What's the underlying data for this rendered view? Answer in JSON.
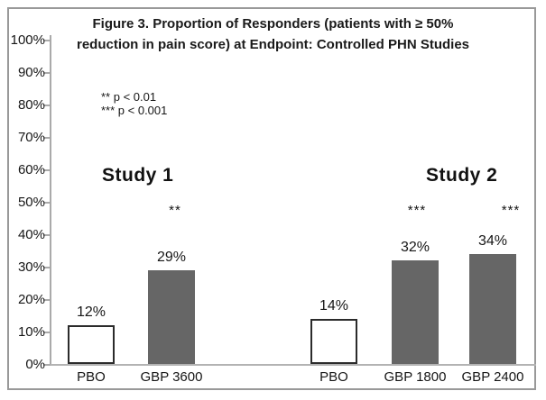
{
  "figure": {
    "title_lines": [
      "Figure 3. Proportion of Responders (patients with ≥ 50%",
      "reduction in pain score) at Endpoint: Controlled PHN Studies"
    ]
  },
  "chart_data": {
    "type": "bar",
    "title": "Figure 3. Proportion of Responders (patients with ≥ 50% reduction in pain score) at Endpoint: Controlled PHN Studies",
    "xlabel": "",
    "ylabel": "",
    "ylim": [
      0,
      100
    ],
    "grid": false,
    "ytick_labels": [
      "100%",
      "90%",
      "80%",
      "70%",
      "60%",
      "50%",
      "40%",
      "30%",
      "20%",
      "10%",
      "0%"
    ],
    "legend_notes": [
      "** p < 0.01",
      "*** p < 0.001"
    ],
    "categories": [
      "PBO",
      "GBP 3600",
      "PBO",
      "GBP 1800",
      "GBP 2400"
    ],
    "values": [
      12,
      29,
      14,
      32,
      34
    ],
    "groups": [
      {
        "label": "Study 1",
        "bars": [
          {
            "category": "PBO",
            "value": 12,
            "data_label": "12%",
            "significance": "",
            "bar_style": "placebo"
          },
          {
            "category": "GBP 3600",
            "value": 29,
            "data_label": "29%",
            "significance": "**",
            "bar_style": "treatment"
          }
        ]
      },
      {
        "label": "Study 2",
        "bars": [
          {
            "category": "PBO",
            "value": 14,
            "data_label": "14%",
            "significance": "",
            "bar_style": "placebo"
          },
          {
            "category": "GBP 1800",
            "value": 32,
            "data_label": "32%",
            "significance": "***",
            "bar_style": "treatment"
          },
          {
            "category": "GBP 2400",
            "value": 34,
            "data_label": "34%",
            "significance": "***",
            "bar_style": "treatment"
          }
        ]
      }
    ],
    "colors": {
      "treatment_bar": "#666666",
      "placebo_bar_fill": "#ffffff",
      "placebo_bar_border": "#2b2b2b",
      "axis": "#aaaaaa",
      "text": "#161616",
      "frame_border": "#999999"
    }
  }
}
